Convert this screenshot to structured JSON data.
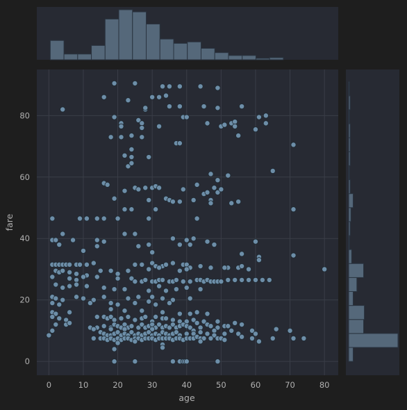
{
  "colors": {
    "background": "#1e1e1e",
    "panel": "#272a33",
    "grid": "#3a3e47",
    "point": "#6d8ea8",
    "bar": "#55687a",
    "text": "#b0b0b0"
  },
  "chart_data": {
    "type": "scatter",
    "xlabel": "age",
    "ylabel": "fare",
    "xlim": [
      -3.5,
      84
    ],
    "ylim": [
      -4.5,
      95
    ],
    "xticks": [
      0,
      10,
      20,
      30,
      40,
      50,
      60,
      70,
      80
    ],
    "yticks": [
      0,
      20,
      40,
      60,
      80
    ],
    "grid": true,
    "marginals": {
      "top_histogram": {
        "bin_start": 0.4,
        "bin_width": 3.98,
        "counts": [
          27,
          8,
          8,
          20,
          57,
          70,
          67,
          50,
          29,
          23,
          25,
          16,
          10,
          6,
          6,
          2,
          3
        ]
      },
      "right_histogram": {
        "bin_start": 0,
        "bin_width": 4.55,
        "counts": [
          6,
          66,
          20,
          21,
          6,
          11,
          20,
          4,
          1,
          2,
          3,
          6,
          2,
          1,
          2,
          2,
          2,
          1,
          2,
          1
        ]
      }
    },
    "points": [
      [
        19,
        90.5
      ],
      [
        25,
        90.5
      ],
      [
        33,
        89.5
      ],
      [
        35,
        89.5
      ],
      [
        38,
        89.5
      ],
      [
        44,
        89.5
      ],
      [
        49,
        89
      ],
      [
        16,
        86
      ],
      [
        30,
        86
      ],
      [
        32,
        86
      ],
      [
        34,
        86.5
      ],
      [
        23,
        85
      ],
      [
        35,
        83
      ],
      [
        38,
        83
      ],
      [
        45,
        83
      ],
      [
        49,
        82.5
      ],
      [
        56,
        83
      ],
      [
        28,
        82
      ],
      [
        4,
        82
      ],
      [
        28,
        82.5
      ],
      [
        19,
        79.5
      ],
      [
        21,
        77.5
      ],
      [
        21,
        76.5
      ],
      [
        26,
        78.5
      ],
      [
        27,
        77.5
      ],
      [
        27,
        76
      ],
      [
        32,
        76.5
      ],
      [
        39,
        79.5
      ],
      [
        40,
        79.5
      ],
      [
        46,
        77.5
      ],
      [
        50,
        76.5
      ],
      [
        51,
        77
      ],
      [
        53,
        77.5
      ],
      [
        54,
        78
      ],
      [
        54,
        76.5
      ],
      [
        61,
        79.5
      ],
      [
        63,
        80
      ],
      [
        63,
        77.5
      ],
      [
        60,
        75.5
      ],
      [
        18,
        73
      ],
      [
        21,
        73
      ],
      [
        24,
        73.5
      ],
      [
        27,
        73
      ],
      [
        37,
        71
      ],
      [
        38,
        71
      ],
      [
        55,
        73.5
      ],
      [
        71,
        70.5
      ],
      [
        24,
        69
      ],
      [
        22,
        67
      ],
      [
        24,
        66.5
      ],
      [
        29,
        66.5
      ],
      [
        23,
        63.5
      ],
      [
        24,
        64.5
      ],
      [
        47,
        61
      ],
      [
        52,
        60.5
      ],
      [
        49,
        59
      ],
      [
        65,
        62
      ],
      [
        16,
        58
      ],
      [
        17,
        57.5
      ],
      [
        25,
        56.5
      ],
      [
        26,
        56
      ],
      [
        28,
        56.5
      ],
      [
        30,
        56.5
      ],
      [
        31,
        57
      ],
      [
        32,
        56.5
      ],
      [
        22,
        55.5
      ],
      [
        39,
        56
      ],
      [
        43,
        57.5
      ],
      [
        45,
        54.5
      ],
      [
        46,
        55
      ],
      [
        48,
        56.5
      ],
      [
        49,
        55
      ],
      [
        50,
        56
      ],
      [
        19,
        53
      ],
      [
        29,
        52.5
      ],
      [
        34,
        53
      ],
      [
        35,
        52.5
      ],
      [
        36,
        52
      ],
      [
        38,
        52
      ],
      [
        42,
        52.5
      ],
      [
        47,
        52.5
      ],
      [
        47,
        51.5
      ],
      [
        53,
        51.5
      ],
      [
        55,
        52
      ],
      [
        22,
        49.5
      ],
      [
        24,
        49.5
      ],
      [
        31,
        49.5
      ],
      [
        71,
        49.5
      ],
      [
        1,
        46.5
      ],
      [
        9,
        46.5
      ],
      [
        11,
        46.5
      ],
      [
        14,
        46.5
      ],
      [
        16,
        46.5
      ],
      [
        20,
        46.5
      ],
      [
        29,
        46.5
      ],
      [
        43,
        46.5
      ],
      [
        4,
        41.5
      ],
      [
        22,
        41.5
      ],
      [
        25,
        41.5
      ],
      [
        1,
        39.5
      ],
      [
        2,
        39.5
      ],
      [
        7,
        39.5
      ],
      [
        14,
        39.5
      ],
      [
        16,
        39
      ],
      [
        36,
        40
      ],
      [
        40,
        39.5
      ],
      [
        42,
        40
      ],
      [
        46,
        39
      ],
      [
        60,
        39
      ],
      [
        3,
        38
      ],
      [
        14,
        37.5
      ],
      [
        26,
        37.5
      ],
      [
        29,
        38
      ],
      [
        38,
        38
      ],
      [
        41,
        38
      ],
      [
        48,
        38
      ],
      [
        10,
        36
      ],
      [
        30,
        35.5
      ],
      [
        56,
        35
      ],
      [
        61,
        34
      ],
      [
        61,
        33
      ],
      [
        71,
        34.5
      ],
      [
        30,
        32
      ],
      [
        36,
        32
      ],
      [
        1,
        31.5
      ],
      [
        2,
        31.5
      ],
      [
        3,
        31.5
      ],
      [
        4,
        31.5
      ],
      [
        5,
        31.5
      ],
      [
        6,
        31.5
      ],
      [
        8,
        31.5
      ],
      [
        9,
        31.5
      ],
      [
        11,
        31.5
      ],
      [
        13,
        32
      ],
      [
        25,
        31.5
      ],
      [
        27,
        31.5
      ],
      [
        31,
        31
      ],
      [
        33,
        31
      ],
      [
        34,
        31.5
      ],
      [
        39,
        31.5
      ],
      [
        40,
        31.5
      ],
      [
        41,
        30.5
      ],
      [
        44,
        31
      ],
      [
        52,
        30.5
      ],
      [
        55,
        30.5
      ],
      [
        56,
        31
      ],
      [
        2,
        29.5
      ],
      [
        3,
        29
      ],
      [
        4,
        29.5
      ],
      [
        6,
        29
      ],
      [
        8,
        28.5
      ],
      [
        11,
        28
      ],
      [
        15,
        29.5
      ],
      [
        18,
        29.5
      ],
      [
        20,
        28.5
      ],
      [
        23,
        29.5
      ],
      [
        29,
        30
      ],
      [
        32,
        30.5
      ],
      [
        38,
        29.5
      ],
      [
        40,
        30
      ],
      [
        47,
        30.5
      ],
      [
        51,
        30.5
      ],
      [
        58,
        30
      ],
      [
        80,
        30
      ],
      [
        1,
        27.5
      ],
      [
        6,
        27
      ],
      [
        8,
        26.5
      ],
      [
        10,
        27.5
      ],
      [
        14,
        27.5
      ],
      [
        20,
        27
      ],
      [
        24,
        27
      ],
      [
        25,
        26
      ],
      [
        27,
        26
      ],
      [
        28,
        26.5
      ],
      [
        30,
        26
      ],
      [
        31,
        26
      ],
      [
        32,
        26.5
      ],
      [
        33,
        26.5
      ],
      [
        35,
        26
      ],
      [
        36,
        26
      ],
      [
        37,
        26.5
      ],
      [
        39,
        26
      ],
      [
        41,
        26
      ],
      [
        43,
        26.5
      ],
      [
        44,
        26.5
      ],
      [
        45,
        26
      ],
      [
        46,
        26.5
      ],
      [
        47,
        26
      ],
      [
        48,
        26
      ],
      [
        49,
        26
      ],
      [
        50,
        26
      ],
      [
        52,
        26.5
      ],
      [
        54,
        26.5
      ],
      [
        56,
        26.5
      ],
      [
        58,
        26.5
      ],
      [
        60,
        26.5
      ],
      [
        62,
        26.5
      ],
      [
        64,
        26.5
      ],
      [
        2,
        25
      ],
      [
        4,
        24
      ],
      [
        6,
        24.5
      ],
      [
        8,
        25
      ],
      [
        11,
        24.5
      ],
      [
        16,
        24
      ],
      [
        19,
        23.5
      ],
      [
        22,
        23.5
      ],
      [
        29,
        23
      ],
      [
        32,
        24.5
      ],
      [
        34,
        23
      ],
      [
        37,
        23.5
      ],
      [
        40,
        24
      ],
      [
        44,
        23.5
      ],
      [
        1,
        21
      ],
      [
        2,
        20.5
      ],
      [
        4,
        20
      ],
      [
        8,
        21
      ],
      [
        10,
        20.5
      ],
      [
        13,
        20
      ],
      [
        16,
        21
      ],
      [
        23,
        20.5
      ],
      [
        26,
        21
      ],
      [
        30,
        21
      ],
      [
        33,
        20.5
      ],
      [
        36,
        20
      ],
      [
        41,
        20.5
      ],
      [
        1,
        19
      ],
      [
        3,
        18.5
      ],
      [
        12,
        19
      ],
      [
        18,
        19
      ],
      [
        20,
        18.5
      ],
      [
        25,
        19
      ],
      [
        29,
        19.5
      ],
      [
        31,
        18.5
      ],
      [
        35,
        19
      ],
      [
        1,
        16
      ],
      [
        2,
        15.5
      ],
      [
        6,
        16
      ],
      [
        18,
        17
      ],
      [
        22,
        16.5
      ],
      [
        27,
        16.5
      ],
      [
        33,
        16
      ],
      [
        38,
        15.5
      ],
      [
        41,
        15.5
      ],
      [
        43,
        16
      ],
      [
        46,
        15.5
      ],
      [
        1,
        14.5
      ],
      [
        3,
        14
      ],
      [
        5,
        13.5
      ],
      [
        14,
        14.5
      ],
      [
        16,
        14.5
      ],
      [
        17,
        14
      ],
      [
        18,
        14.5
      ],
      [
        19,
        13.5
      ],
      [
        21,
        14
      ],
      [
        23,
        14.5
      ],
      [
        25,
        13.5
      ],
      [
        27,
        14
      ],
      [
        28,
        14.5
      ],
      [
        30,
        13
      ],
      [
        31,
        14.5
      ],
      [
        33,
        14
      ],
      [
        34,
        14
      ],
      [
        36,
        13.5
      ],
      [
        38,
        13
      ],
      [
        40,
        13
      ],
      [
        42,
        13.5
      ],
      [
        45,
        13
      ],
      [
        49,
        13
      ],
      [
        54,
        12.5
      ],
      [
        2,
        12
      ],
      [
        5,
        12
      ],
      [
        6,
        12.5
      ],
      [
        12,
        11
      ],
      [
        14,
        11
      ],
      [
        16,
        11.5
      ],
      [
        18,
        11
      ],
      [
        19,
        12
      ],
      [
        20,
        11.5
      ],
      [
        21,
        11
      ],
      [
        22,
        12
      ],
      [
        23,
        11
      ],
      [
        24,
        11.5
      ],
      [
        26,
        11
      ],
      [
        27,
        12
      ],
      [
        28,
        11
      ],
      [
        29,
        11.5
      ],
      [
        30,
        12
      ],
      [
        31,
        11
      ],
      [
        32,
        12
      ],
      [
        33,
        11
      ],
      [
        34,
        11.5
      ],
      [
        35,
        11
      ],
      [
        36,
        12
      ],
      [
        37,
        11
      ],
      [
        38,
        11.5
      ],
      [
        39,
        12
      ],
      [
        40,
        11.5
      ],
      [
        41,
        11
      ],
      [
        43,
        12.5
      ],
      [
        44,
        11
      ],
      [
        46,
        12
      ],
      [
        47,
        11.5
      ],
      [
        49,
        11
      ],
      [
        51,
        11.5
      ],
      [
        52,
        11.5
      ],
      [
        56,
        12
      ],
      [
        1,
        10
      ],
      [
        13,
        10.5
      ],
      [
        18,
        10.5
      ],
      [
        22,
        10.5
      ],
      [
        30,
        10.5
      ],
      [
        42,
        10
      ],
      [
        48,
        10
      ],
      [
        53,
        10
      ],
      [
        59,
        10
      ],
      [
        66,
        10.5
      ],
      [
        70,
        10
      ],
      [
        15,
        9.5
      ],
      [
        16,
        9
      ],
      [
        17,
        8.5
      ],
      [
        18,
        8.5
      ],
      [
        19,
        9
      ],
      [
        20,
        9.5
      ],
      [
        21,
        8.5
      ],
      [
        22,
        9
      ],
      [
        23,
        8.5
      ],
      [
        24,
        9.5
      ],
      [
        25,
        8.5
      ],
      [
        26,
        9
      ],
      [
        27,
        8.5
      ],
      [
        28,
        9
      ],
      [
        29,
        9.5
      ],
      [
        30,
        8.5
      ],
      [
        31,
        9
      ],
      [
        32,
        8.5
      ],
      [
        33,
        9.5
      ],
      [
        34,
        9
      ],
      [
        35,
        8.5
      ],
      [
        36,
        9
      ],
      [
        37,
        9.5
      ],
      [
        38,
        8.5
      ],
      [
        40,
        9
      ],
      [
        42,
        9
      ],
      [
        44,
        9.5
      ],
      [
        46,
        9
      ],
      [
        48,
        8.5
      ],
      [
        51,
        9
      ],
      [
        55,
        9
      ],
      [
        60,
        9
      ],
      [
        0,
        8.5
      ],
      [
        13,
        7.5
      ],
      [
        15,
        7.5
      ],
      [
        16,
        7.5
      ],
      [
        17,
        7
      ],
      [
        18,
        7.5
      ],
      [
        19,
        7
      ],
      [
        20,
        7.5
      ],
      [
        21,
        7
      ],
      [
        22,
        7.5
      ],
      [
        23,
        7.5
      ],
      [
        24,
        7
      ],
      [
        25,
        7.5
      ],
      [
        26,
        7.5
      ],
      [
        27,
        7
      ],
      [
        28,
        7.5
      ],
      [
        29,
        7.5
      ],
      [
        30,
        7.5
      ],
      [
        31,
        7
      ],
      [
        32,
        7.5
      ],
      [
        33,
        7.5
      ],
      [
        34,
        7.5
      ],
      [
        35,
        7.5
      ],
      [
        36,
        7
      ],
      [
        37,
        7.5
      ],
      [
        38,
        7.5
      ],
      [
        39,
        7
      ],
      [
        40,
        7.5
      ],
      [
        41,
        7.5
      ],
      [
        42,
        7.5
      ],
      [
        43,
        8
      ],
      [
        44,
        7.5
      ],
      [
        45,
        7.5
      ],
      [
        47,
        7.5
      ],
      [
        49,
        7.5
      ],
      [
        50,
        7.5
      ],
      [
        51,
        7
      ],
      [
        56,
        8
      ],
      [
        59,
        7.5
      ],
      [
        65,
        7.5
      ],
      [
        71,
        7.5
      ],
      [
        74,
        7.5
      ],
      [
        20,
        6
      ],
      [
        25,
        6.5
      ],
      [
        33,
        5.5
      ],
      [
        44,
        6.5
      ],
      [
        61,
        6.5
      ],
      [
        19,
        4
      ],
      [
        33,
        4.5
      ],
      [
        19,
        0
      ],
      [
        25,
        0
      ],
      [
        36,
        0
      ],
      [
        38,
        0
      ],
      [
        39,
        0
      ],
      [
        39.5,
        0
      ],
      [
        40,
        0
      ],
      [
        49,
        0
      ]
    ]
  }
}
